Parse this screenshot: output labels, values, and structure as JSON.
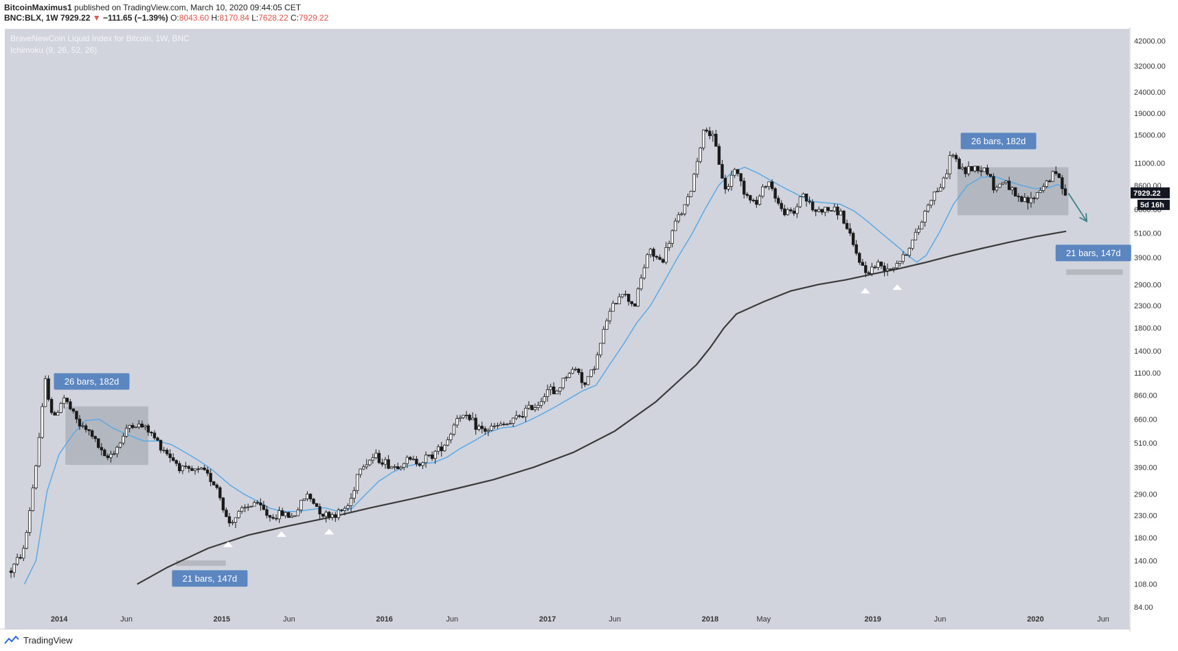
{
  "header": {
    "author": "BitcoinMaximus1",
    "published_text": "published on TradingView.com, March 10, 2020 09:44:05 CET",
    "symbol": "BNC:BLX, 1W",
    "last_price": "7929.22",
    "change_arrow": "▼",
    "change_text": "−111.65 (−1.39%)",
    "o_label": "O:",
    "o_value": "8043.60",
    "h_label": "H:",
    "h_value": "8170.84",
    "l_label": "L:",
    "l_value": "7628.22",
    "c_label": "C:",
    "c_value": "7929.22"
  },
  "legend": {
    "title": "BraveNewCoin Liquid Index for Bitcoin, 1W, BNC",
    "indicator": "Ichimoku (9, 26, 52, 26)"
  },
  "price_badge": {
    "price": "7929.22",
    "countdown": "5d 16h"
  },
  "footer": {
    "brand": "TradingView"
  },
  "colors": {
    "background": "#d1d4dc",
    "candle": "#1a1a1a",
    "ichimoku_line": "#5aa9e6",
    "long_ma": "#3a3a3a",
    "callout": "#5b86c0",
    "box_fill": "#9aa0aa",
    "arrow": "#3d7f86",
    "marker": "#ffffff"
  },
  "chart_data": {
    "type": "candlestick",
    "scale": "log",
    "timeframe": "1W",
    "x_tick_labels": [
      "2014",
      "Jun",
      "2015",
      "Jun",
      "2016",
      "Jun",
      "2017",
      "Jun",
      "2018",
      "May",
      "2019",
      "Jun",
      "2020",
      "Jun"
    ],
    "x_tick_dates": [
      "2014-01-01",
      "2014-06-01",
      "2015-01-01",
      "2015-06-01",
      "2016-01-01",
      "2016-06-01",
      "2017-01-01",
      "2017-06-01",
      "2018-01-01",
      "2018-05-01",
      "2019-01-01",
      "2019-06-01",
      "2020-01-01",
      "2020-06-01"
    ],
    "y_ticks": [
      84,
      108,
      140,
      180,
      230,
      290,
      390,
      510,
      660,
      860,
      1100,
      1400,
      1800,
      2300,
      2900,
      3900,
      5100,
      6600,
      8600,
      11000,
      15000,
      19000,
      24000,
      32000,
      42000
    ],
    "y_tick_labels": [
      "84.00",
      "108.00",
      "140.00",
      "180.00",
      "230.00",
      "290.00",
      "390.00",
      "510.00",
      "660.00",
      "860.00",
      "1100.00",
      "1400.00",
      "1800.00",
      "2300.00",
      "2900.00",
      "3900.00",
      "5100.00",
      "6600.00",
      "8600.00",
      "11000.00",
      "15000.00",
      "19000.00",
      "24000.00",
      "32000.00",
      "42000.00"
    ],
    "y_range": [
      66,
      48000
    ],
    "price_path": [
      [
        "2013-09-15",
        125
      ],
      [
        "2013-10-15",
        160
      ],
      [
        "2013-11-10",
        400
      ],
      [
        "2013-12-01",
        1000
      ],
      [
        "2013-12-20",
        650
      ],
      [
        "2014-01-10",
        850
      ],
      [
        "2014-02-15",
        620
      ],
      [
        "2014-03-15",
        560
      ],
      [
        "2014-04-15",
        420
      ],
      [
        "2014-05-15",
        500
      ],
      [
        "2014-06-10",
        630
      ],
      [
        "2014-07-15",
        600
      ],
      [
        "2014-08-15",
        500
      ],
      [
        "2014-09-20",
        410
      ],
      [
        "2014-10-15",
        370
      ],
      [
        "2014-11-20",
        375
      ],
      [
        "2014-12-20",
        320
      ],
      [
        "2015-01-15",
        210
      ],
      [
        "2015-02-15",
        240
      ],
      [
        "2015-03-15",
        265
      ],
      [
        "2015-04-20",
        225
      ],
      [
        "2015-05-20",
        235
      ],
      [
        "2015-06-10",
        225
      ],
      [
        "2015-07-10",
        290
      ],
      [
        "2015-08-20",
        230
      ],
      [
        "2015-09-20",
        235
      ],
      [
        "2015-10-15",
        260
      ],
      [
        "2015-11-05",
        390
      ],
      [
        "2015-12-10",
        440
      ],
      [
        "2016-01-20",
        390
      ],
      [
        "2016-02-20",
        420
      ],
      [
        "2016-03-20",
        415
      ],
      [
        "2016-04-20",
        450
      ],
      [
        "2016-05-20",
        520
      ],
      [
        "2016-06-15",
        700
      ],
      [
        "2016-07-10",
        650
      ],
      [
        "2016-08-10",
        580
      ],
      [
        "2016-09-10",
        610
      ],
      [
        "2016-10-10",
        630
      ],
      [
        "2016-11-10",
        720
      ],
      [
        "2016-12-10",
        780
      ],
      [
        "2017-01-05",
        950
      ],
      [
        "2017-01-15",
        850
      ],
      [
        "2017-02-15",
        1100
      ],
      [
        "2017-03-10",
        1150
      ],
      [
        "2017-03-25",
        950
      ],
      [
        "2017-04-20",
        1250
      ],
      [
        "2017-05-15",
        2000
      ],
      [
        "2017-06-15",
        2700
      ],
      [
        "2017-07-15",
        2300
      ],
      [
        "2017-08-15",
        4200
      ],
      [
        "2017-09-15",
        3700
      ],
      [
        "2017-10-15",
        5700
      ],
      [
        "2017-11-15",
        7500
      ],
      [
        "2017-12-05",
        12000
      ],
      [
        "2017-12-20",
        16500
      ],
      [
        "2018-01-10",
        14000
      ],
      [
        "2018-02-05",
        8000
      ],
      [
        "2018-02-25",
        10500
      ],
      [
        "2018-03-20",
        8000
      ],
      [
        "2018-04-15",
        7000
      ],
      [
        "2018-05-10",
        9300
      ],
      [
        "2018-06-10",
        6500
      ],
      [
        "2018-07-10",
        6300
      ],
      [
        "2018-07-25",
        8100
      ],
      [
        "2018-08-20",
        6500
      ],
      [
        "2018-09-20",
        6600
      ],
      [
        "2018-10-20",
        6450
      ],
      [
        "2018-11-20",
        4300
      ],
      [
        "2018-12-15",
        3300
      ],
      [
        "2019-01-10",
        3600
      ],
      [
        "2019-02-10",
        3500
      ],
      [
        "2019-03-10",
        3900
      ],
      [
        "2019-04-10",
        5100
      ],
      [
        "2019-05-10",
        7500
      ],
      [
        "2019-06-10",
        9000
      ],
      [
        "2019-06-26",
        12500
      ],
      [
        "2019-07-20",
        10000
      ],
      [
        "2019-08-15",
        10500
      ],
      [
        "2019-09-15",
        10200
      ],
      [
        "2019-10-01",
        8200
      ],
      [
        "2019-10-25",
        9200
      ],
      [
        "2019-11-20",
        7300
      ],
      [
        "2019-12-20",
        7200
      ],
      [
        "2020-01-20",
        8700
      ],
      [
        "2020-02-15",
        9900
      ],
      [
        "2020-03-10",
        7929
      ]
    ],
    "series": [
      {
        "values": [
          [
            "2013-10-15",
            108
          ],
          [
            "2013-11-10",
            140
          ],
          [
            "2013-12-05",
            300
          ],
          [
            "2014-01-01",
            450
          ],
          [
            "2014-02-01",
            560
          ],
          [
            "2014-03-01",
            650
          ],
          [
            "2014-04-01",
            660
          ],
          [
            "2014-05-01",
            600
          ],
          [
            "2014-06-01",
            560
          ],
          [
            "2014-07-10",
            520
          ],
          [
            "2014-08-10",
            520
          ],
          [
            "2014-09-10",
            500
          ],
          [
            "2014-10-10",
            460
          ],
          [
            "2014-11-10",
            420
          ],
          [
            "2014-12-10",
            380
          ],
          [
            "2015-01-20",
            320
          ],
          [
            "2015-02-20",
            290
          ],
          [
            "2015-03-20",
            270
          ],
          [
            "2015-04-20",
            248
          ],
          [
            "2015-05-20",
            240
          ],
          [
            "2015-06-20",
            240
          ],
          [
            "2015-07-20",
            245
          ],
          [
            "2015-08-20",
            250
          ],
          [
            "2015-09-20",
            240
          ],
          [
            "2015-10-20",
            248
          ],
          [
            "2015-11-20",
            290
          ],
          [
            "2015-12-20",
            335
          ],
          [
            "2016-01-20",
            370
          ],
          [
            "2016-02-20",
            395
          ],
          [
            "2016-03-20",
            405
          ],
          [
            "2016-04-20",
            410
          ],
          [
            "2016-05-20",
            435
          ],
          [
            "2016-06-20",
            480
          ],
          [
            "2016-07-20",
            520
          ],
          [
            "2016-08-20",
            570
          ],
          [
            "2016-09-20",
            600
          ],
          [
            "2016-10-20",
            610
          ],
          [
            "2016-11-20",
            650
          ],
          [
            "2016-12-20",
            700
          ],
          [
            "2017-01-20",
            760
          ],
          [
            "2017-02-20",
            830
          ],
          [
            "2017-03-20",
            900
          ],
          [
            "2017-04-20",
            960
          ],
          [
            "2017-05-20",
            1200
          ],
          [
            "2017-06-20",
            1500
          ],
          [
            "2017-07-20",
            1900
          ],
          [
            "2017-08-20",
            2300
          ],
          [
            "2017-09-20",
            3000
          ],
          [
            "2017-10-20",
            3900
          ],
          [
            "2017-11-20",
            5000
          ],
          [
            "2017-12-20",
            6600
          ],
          [
            "2018-01-20",
            8600
          ],
          [
            "2018-02-20",
            10000
          ],
          [
            "2018-03-20",
            10500
          ],
          [
            "2018-04-20",
            9800
          ],
          [
            "2018-05-20",
            9000
          ],
          [
            "2018-06-20",
            8300
          ],
          [
            "2018-07-20",
            7700
          ],
          [
            "2018-08-20",
            7200
          ],
          [
            "2018-09-20",
            7100
          ],
          [
            "2018-10-20",
            7000
          ],
          [
            "2018-11-20",
            6500
          ],
          [
            "2018-12-20",
            5800
          ],
          [
            "2019-01-20",
            5100
          ],
          [
            "2019-02-20",
            4500
          ],
          [
            "2019-03-20",
            4000
          ],
          [
            "2019-04-10",
            3700
          ],
          [
            "2019-05-01",
            4000
          ],
          [
            "2019-06-01",
            5200
          ],
          [
            "2019-07-01",
            7000
          ],
          [
            "2019-08-01",
            8600
          ],
          [
            "2019-09-01",
            9400
          ],
          [
            "2019-10-01",
            9500
          ],
          [
            "2019-11-01",
            9000
          ],
          [
            "2019-12-01",
            8600
          ],
          [
            "2020-01-01",
            8300
          ],
          [
            "2020-02-01",
            8400
          ],
          [
            "2020-02-20",
            8700
          ],
          [
            "2020-03-10",
            8200
          ]
        ]
      },
      {
        "values": [
          [
            "2014-06-25",
            108
          ],
          [
            "2014-09-01",
            130
          ],
          [
            "2014-12-01",
            160
          ],
          [
            "2015-03-01",
            185
          ],
          [
            "2015-06-01",
            205
          ],
          [
            "2015-09-01",
            225
          ],
          [
            "2015-12-01",
            250
          ],
          [
            "2016-03-01",
            275
          ],
          [
            "2016-06-01",
            305
          ],
          [
            "2016-09-01",
            340
          ],
          [
            "2016-12-01",
            390
          ],
          [
            "2017-03-01",
            460
          ],
          [
            "2017-06-01",
            580
          ],
          [
            "2017-09-01",
            800
          ],
          [
            "2017-11-01",
            1050
          ],
          [
            "2017-12-01",
            1200
          ],
          [
            "2018-01-01",
            1450
          ],
          [
            "2018-02-01",
            1800
          ],
          [
            "2018-03-01",
            2100
          ],
          [
            "2018-05-01",
            2400
          ],
          [
            "2018-07-01",
            2700
          ],
          [
            "2018-09-01",
            2900
          ],
          [
            "2018-11-01",
            3050
          ],
          [
            "2019-01-01",
            3250
          ],
          [
            "2019-03-01",
            3450
          ],
          [
            "2019-05-01",
            3700
          ],
          [
            "2019-07-01",
            4000
          ],
          [
            "2019-09-01",
            4300
          ],
          [
            "2019-11-01",
            4600
          ],
          [
            "2020-01-01",
            4900
          ],
          [
            "2020-03-10",
            5200
          ]
        ]
      }
    ],
    "annotations": {
      "callouts": [
        {
          "text": "26 bars, 182d",
          "date": "2014-03-15",
          "price": 1000
        },
        {
          "text": "21 bars, 147d",
          "date": "2014-12-05",
          "price": 115
        },
        {
          "text": "26 bars, 182d",
          "date": "2019-10-10",
          "price": 14000
        },
        {
          "text": "21 bars, 147d",
          "date": "2020-05-10",
          "price": 4100
        }
      ],
      "boxes": [
        {
          "from": "2014-01-15",
          "to": "2014-07-20",
          "low": 400,
          "high": 760
        },
        {
          "from": "2019-07-10",
          "to": "2020-03-15",
          "low": 6200,
          "high": 10500
        }
      ],
      "rulers": [
        {
          "from": "2014-09-20",
          "to": "2015-01-10",
          "price": 136
        },
        {
          "from": "2020-03-10",
          "to": "2020-07-15",
          "price": 3320
        }
      ],
      "markers": [
        {
          "date": "2015-01-15",
          "price": 170
        },
        {
          "date": "2015-05-15",
          "price": 190
        },
        {
          "date": "2015-08-30",
          "price": 195
        },
        {
          "date": "2018-12-15",
          "price": 2750
        },
        {
          "date": "2019-02-25",
          "price": 2860
        }
      ],
      "arrow": {
        "from": [
          "2020-03-15",
          7900
        ],
        "to": [
          "2020-04-25",
          5800
        ]
      }
    }
  }
}
